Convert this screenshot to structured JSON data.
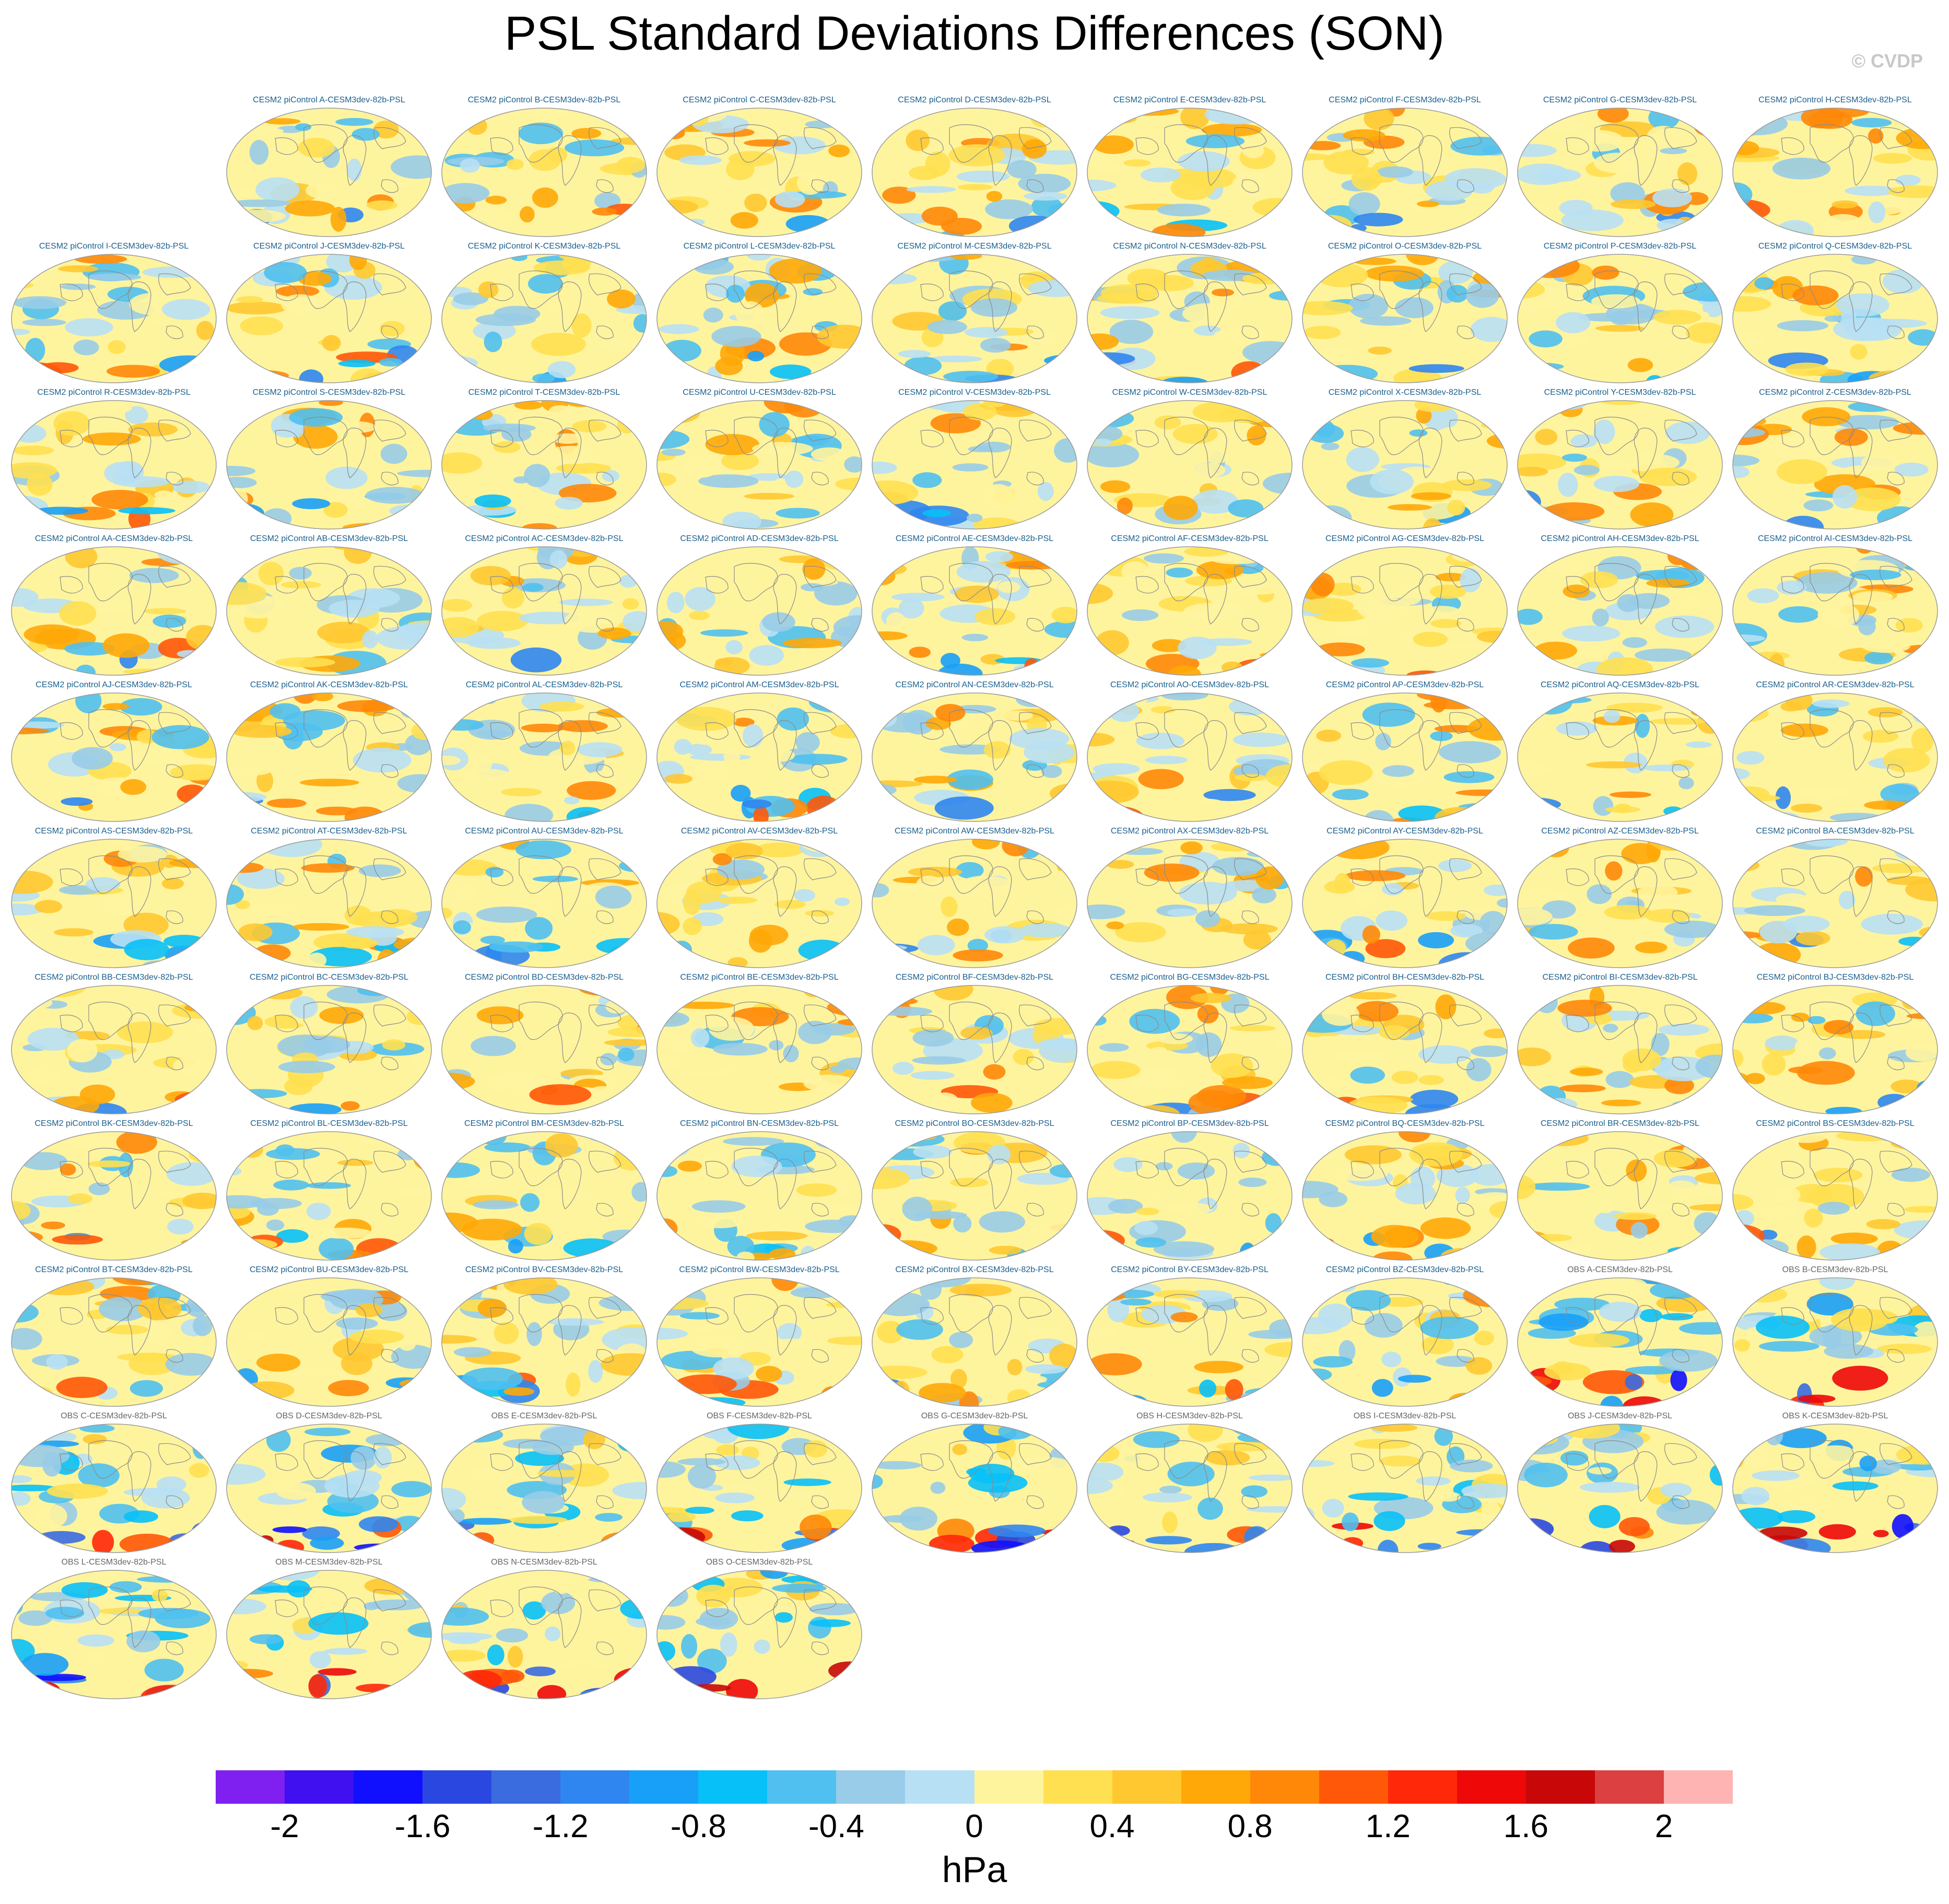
{
  "chart": {
    "title": "PSL Standard Deviations Differences (SON)",
    "watermark": "© CVDP",
    "units": "hPa"
  },
  "chart_data": {
    "type": "heatmap",
    "title": "PSL Standard Deviations Differences (SON)",
    "projection": "global map panels",
    "colorbar": {
      "label": "hPa",
      "range": [
        -2.2,
        2.2
      ],
      "tick_labels": [
        "-2",
        "-1.6",
        "-1.2",
        "-0.8",
        "-0.4",
        "0",
        "0.4",
        "0.8",
        "1.2",
        "1.6",
        "2"
      ],
      "colors": [
        "#8020f0",
        "#4010f0",
        "#1010ff",
        "#2a48e0",
        "#3a6ce0",
        "#2f86f0",
        "#18a0f8",
        "#08c0f8",
        "#50c0f0",
        "#98cce8",
        "#b8e0f4",
        "#fff49e",
        "#ffe050",
        "#ffc830",
        "#ffa808",
        "#ff8808",
        "#ff5808",
        "#ff2808",
        "#ee0808",
        "#c80808",
        "#dc4040",
        "#ffb4b4"
      ]
    },
    "panels": [
      {
        "title": "CESM2 piControl A-CESM3dev-82b-PSL",
        "source": "cesm"
      },
      {
        "title": "CESM2 piControl B-CESM3dev-82b-PSL",
        "source": "cesm"
      },
      {
        "title": "CESM2 piControl C-CESM3dev-82b-PSL",
        "source": "cesm"
      },
      {
        "title": "CESM2 piControl D-CESM3dev-82b-PSL",
        "source": "cesm"
      },
      {
        "title": "CESM2 piControl E-CESM3dev-82b-PSL",
        "source": "cesm"
      },
      {
        "title": "CESM2 piControl F-CESM3dev-82b-PSL",
        "source": "cesm"
      },
      {
        "title": "CESM2 piControl G-CESM3dev-82b-PSL",
        "source": "cesm"
      },
      {
        "title": "CESM2 piControl H-CESM3dev-82b-PSL",
        "source": "cesm"
      },
      {
        "title": "CESM2 piControl I-CESM3dev-82b-PSL",
        "source": "cesm"
      },
      {
        "title": "CESM2 piControl J-CESM3dev-82b-PSL",
        "source": "cesm"
      },
      {
        "title": "CESM2 piControl K-CESM3dev-82b-PSL",
        "source": "cesm"
      },
      {
        "title": "CESM2 piControl L-CESM3dev-82b-PSL",
        "source": "cesm"
      },
      {
        "title": "CESM2 piControl M-CESM3dev-82b-PSL",
        "source": "cesm"
      },
      {
        "title": "CESM2 piControl N-CESM3dev-82b-PSL",
        "source": "cesm"
      },
      {
        "title": "CESM2 piControl O-CESM3dev-82b-PSL",
        "source": "cesm"
      },
      {
        "title": "CESM2 piControl P-CESM3dev-82b-PSL",
        "source": "cesm"
      },
      {
        "title": "CESM2 piControl Q-CESM3dev-82b-PSL",
        "source": "cesm"
      },
      {
        "title": "CESM2 piControl R-CESM3dev-82b-PSL",
        "source": "cesm"
      },
      {
        "title": "CESM2 piControl S-CESM3dev-82b-PSL",
        "source": "cesm"
      },
      {
        "title": "CESM2 piControl T-CESM3dev-82b-PSL",
        "source": "cesm"
      },
      {
        "title": "CESM2 piControl U-CESM3dev-82b-PSL",
        "source": "cesm"
      },
      {
        "title": "CESM2 piControl V-CESM3dev-82b-PSL",
        "source": "cesm"
      },
      {
        "title": "CESM2 piControl W-CESM3dev-82b-PSL",
        "source": "cesm"
      },
      {
        "title": "CESM2 piControl X-CESM3dev-82b-PSL",
        "source": "cesm"
      },
      {
        "title": "CESM2 piControl Y-CESM3dev-82b-PSL",
        "source": "cesm"
      },
      {
        "title": "CESM2 piControl Z-CESM3dev-82b-PSL",
        "source": "cesm"
      },
      {
        "title": "CESM2 piControl AA-CESM3dev-82b-PSL",
        "source": "cesm"
      },
      {
        "title": "CESM2 piControl AB-CESM3dev-82b-PSL",
        "source": "cesm"
      },
      {
        "title": "CESM2 piControl AC-CESM3dev-82b-PSL",
        "source": "cesm"
      },
      {
        "title": "CESM2 piControl AD-CESM3dev-82b-PSL",
        "source": "cesm"
      },
      {
        "title": "CESM2 piControl AE-CESM3dev-82b-PSL",
        "source": "cesm"
      },
      {
        "title": "CESM2 piControl AF-CESM3dev-82b-PSL",
        "source": "cesm"
      },
      {
        "title": "CESM2 piControl AG-CESM3dev-82b-PSL",
        "source": "cesm"
      },
      {
        "title": "CESM2 piControl AH-CESM3dev-82b-PSL",
        "source": "cesm"
      },
      {
        "title": "CESM2 piControl AI-CESM3dev-82b-PSL",
        "source": "cesm"
      },
      {
        "title": "CESM2 piControl AJ-CESM3dev-82b-PSL",
        "source": "cesm"
      },
      {
        "title": "CESM2 piControl AK-CESM3dev-82b-PSL",
        "source": "cesm"
      },
      {
        "title": "CESM2 piControl AL-CESM3dev-82b-PSL",
        "source": "cesm"
      },
      {
        "title": "CESM2 piControl AM-CESM3dev-82b-PSL",
        "source": "cesm"
      },
      {
        "title": "CESM2 piControl AN-CESM3dev-82b-PSL",
        "source": "cesm"
      },
      {
        "title": "CESM2 piControl AO-CESM3dev-82b-PSL",
        "source": "cesm"
      },
      {
        "title": "CESM2 piControl AP-CESM3dev-82b-PSL",
        "source": "cesm"
      },
      {
        "title": "CESM2 piControl AQ-CESM3dev-82b-PSL",
        "source": "cesm"
      },
      {
        "title": "CESM2 piControl AR-CESM3dev-82b-PSL",
        "source": "cesm"
      },
      {
        "title": "CESM2 piControl AS-CESM3dev-82b-PSL",
        "source": "cesm"
      },
      {
        "title": "CESM2 piControl AT-CESM3dev-82b-PSL",
        "source": "cesm"
      },
      {
        "title": "CESM2 piControl AU-CESM3dev-82b-PSL",
        "source": "cesm"
      },
      {
        "title": "CESM2 piControl AV-CESM3dev-82b-PSL",
        "source": "cesm"
      },
      {
        "title": "CESM2 piControl AW-CESM3dev-82b-PSL",
        "source": "cesm"
      },
      {
        "title": "CESM2 piControl AX-CESM3dev-82b-PSL",
        "source": "cesm"
      },
      {
        "title": "CESM2 piControl AY-CESM3dev-82b-PSL",
        "source": "cesm"
      },
      {
        "title": "CESM2 piControl AZ-CESM3dev-82b-PSL",
        "source": "cesm"
      },
      {
        "title": "CESM2 piControl BA-CESM3dev-82b-PSL",
        "source": "cesm"
      },
      {
        "title": "CESM2 piControl BB-CESM3dev-82b-PSL",
        "source": "cesm"
      },
      {
        "title": "CESM2 piControl BC-CESM3dev-82b-PSL",
        "source": "cesm"
      },
      {
        "title": "CESM2 piControl BD-CESM3dev-82b-PSL",
        "source": "cesm"
      },
      {
        "title": "CESM2 piControl BE-CESM3dev-82b-PSL",
        "source": "cesm"
      },
      {
        "title": "CESM2 piControl BF-CESM3dev-82b-PSL",
        "source": "cesm"
      },
      {
        "title": "CESM2 piControl BG-CESM3dev-82b-PSL",
        "source": "cesm"
      },
      {
        "title": "CESM2 piControl BH-CESM3dev-82b-PSL",
        "source": "cesm"
      },
      {
        "title": "CESM2 piControl BI-CESM3dev-82b-PSL",
        "source": "cesm"
      },
      {
        "title": "CESM2 piControl BJ-CESM3dev-82b-PSL",
        "source": "cesm"
      },
      {
        "title": "CESM2 piControl BK-CESM3dev-82b-PSL",
        "source": "cesm"
      },
      {
        "title": "CESM2 piControl BL-CESM3dev-82b-PSL",
        "source": "cesm"
      },
      {
        "title": "CESM2 piControl BM-CESM3dev-82b-PSL",
        "source": "cesm"
      },
      {
        "title": "CESM2 piControl BN-CESM3dev-82b-PSL",
        "source": "cesm"
      },
      {
        "title": "CESM2 piControl BO-CESM3dev-82b-PSL",
        "source": "cesm"
      },
      {
        "title": "CESM2 piControl BP-CESM3dev-82b-PSL",
        "source": "cesm"
      },
      {
        "title": "CESM2 piControl BQ-CESM3dev-82b-PSL",
        "source": "cesm"
      },
      {
        "title": "CESM2 piControl BR-CESM3dev-82b-PSL",
        "source": "cesm"
      },
      {
        "title": "CESM2 piControl BS-CESM3dev-82b-PSL",
        "source": "cesm"
      },
      {
        "title": "CESM2 piControl BT-CESM3dev-82b-PSL",
        "source": "cesm"
      },
      {
        "title": "CESM2 piControl BU-CESM3dev-82b-PSL",
        "source": "cesm"
      },
      {
        "title": "CESM2 piControl BV-CESM3dev-82b-PSL",
        "source": "cesm"
      },
      {
        "title": "CESM2 piControl BW-CESM3dev-82b-PSL",
        "source": "cesm"
      },
      {
        "title": "CESM2 piControl BX-CESM3dev-82b-PSL",
        "source": "cesm"
      },
      {
        "title": "CESM2 piControl BY-CESM3dev-82b-PSL",
        "source": "cesm"
      },
      {
        "title": "CESM2 piControl BZ-CESM3dev-82b-PSL",
        "source": "cesm"
      },
      {
        "title": "OBS A-CESM3dev-82b-PSL",
        "source": "obs"
      },
      {
        "title": "OBS B-CESM3dev-82b-PSL",
        "source": "obs"
      },
      {
        "title": "OBS C-CESM3dev-82b-PSL",
        "source": "obs"
      },
      {
        "title": "OBS D-CESM3dev-82b-PSL",
        "source": "obs"
      },
      {
        "title": "OBS E-CESM3dev-82b-PSL",
        "source": "obs"
      },
      {
        "title": "OBS F-CESM3dev-82b-PSL",
        "source": "obs"
      },
      {
        "title": "OBS G-CESM3dev-82b-PSL",
        "source": "obs"
      },
      {
        "title": "OBS H-CESM3dev-82b-PSL",
        "source": "obs"
      },
      {
        "title": "OBS I-CESM3dev-82b-PSL",
        "source": "obs"
      },
      {
        "title": "OBS J-CESM3dev-82b-PSL",
        "source": "obs"
      },
      {
        "title": "OBS K-CESM3dev-82b-PSL",
        "source": "obs"
      },
      {
        "title": "OBS L-CESM3dev-82b-PSL",
        "source": "obs"
      },
      {
        "title": "OBS M-CESM3dev-82b-PSL",
        "source": "obs"
      },
      {
        "title": "OBS N-CESM3dev-82b-PSL",
        "source": "obs"
      },
      {
        "title": "OBS O-CESM3dev-82b-PSL",
        "source": "obs"
      }
    ]
  }
}
